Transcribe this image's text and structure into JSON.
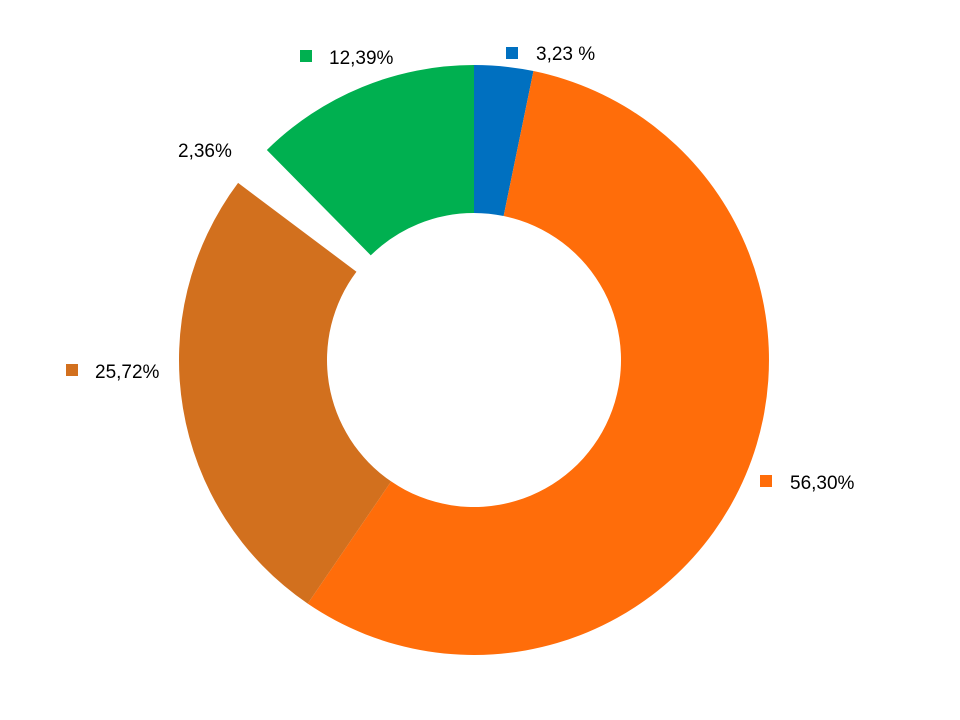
{
  "chart_data": {
    "type": "pie",
    "title": "",
    "categories": [
      "",
      "",
      "",
      "",
      ""
    ],
    "values": [
      3.23,
      56.3,
      25.72,
      2.36,
      12.39
    ],
    "value_labels": [
      "3,23 %",
      "56,30%",
      "25,72%",
      "2,36%",
      "12,39%"
    ],
    "colors": [
      "#0070C0",
      "#FF6D0A",
      "#D2701E",
      "#FFFFFF",
      "#00B050"
    ],
    "start_angle_deg": 0,
    "direction": "clockwise",
    "exploded": [
      false,
      false,
      false,
      true,
      false
    ],
    "donut": true,
    "legend": "none"
  }
}
